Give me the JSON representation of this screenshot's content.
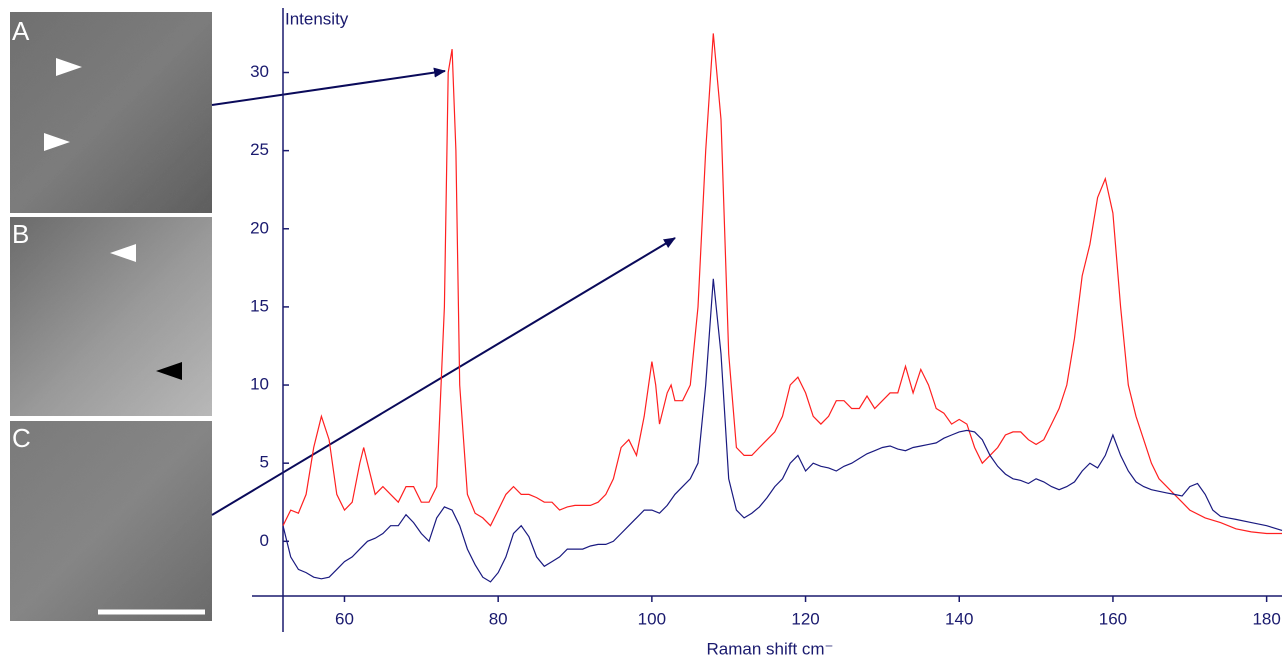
{
  "chart_data": {
    "type": "line",
    "panels": [
      "A",
      "B",
      "C"
    ],
    "ylabel": "Intensity",
    "xlabel": "Raman shift cm⁻",
    "xlim": [
      52,
      182
    ],
    "xticks": [
      60,
      80,
      100,
      120,
      140,
      160,
      180
    ],
    "ylim": [
      -3.5,
      34
    ],
    "yticks": [
      0,
      5,
      10,
      15,
      20,
      25,
      30
    ],
    "series": [
      {
        "color": "#ff2020",
        "x": [
          52,
          53,
          54,
          55,
          56,
          57,
          58,
          59,
          60,
          61,
          62,
          62.5,
          63,
          64,
          65,
          66,
          67,
          68,
          69,
          70,
          71,
          72,
          73,
          73.5,
          74,
          74.5,
          75,
          76,
          77,
          78,
          79,
          80,
          81,
          82,
          83,
          84,
          85,
          86,
          87,
          88,
          89,
          90,
          91,
          92,
          93,
          94,
          95,
          96,
          97,
          98,
          99,
          100,
          100.5,
          101,
          102,
          102.5,
          103,
          104,
          105,
          106,
          107,
          108,
          109,
          110,
          111,
          112,
          113,
          114,
          115,
          116,
          117,
          118,
          119,
          120,
          121,
          122,
          123,
          124,
          125,
          126,
          127,
          128,
          129,
          130,
          131,
          132,
          133,
          134,
          135,
          136,
          137,
          138,
          139,
          140,
          141,
          142,
          143,
          144,
          145,
          146,
          147,
          148,
          149,
          150,
          151,
          152,
          153,
          154,
          155,
          156,
          157,
          158,
          159,
          160,
          161,
          162,
          163,
          164,
          165,
          166,
          167,
          168,
          169,
          170,
          172,
          174,
          176,
          178,
          180,
          182
        ],
        "values": [
          1,
          2,
          1.8,
          3,
          6,
          8,
          6.5,
          3,
          2,
          2.5,
          5,
          6,
          5,
          3,
          3.5,
          3,
          2.5,
          3.5,
          3.5,
          2.5,
          2.5,
          3.5,
          15,
          30,
          31.5,
          25,
          10,
          3,
          1.8,
          1.5,
          1,
          2,
          3,
          3.5,
          3,
          3,
          2.8,
          2.5,
          2.5,
          2,
          2.2,
          2.3,
          2.3,
          2.3,
          2.5,
          3,
          4,
          6,
          6.5,
          5.5,
          8,
          11.5,
          10,
          7.5,
          9.5,
          10,
          9,
          9,
          10,
          15,
          25,
          32.5,
          27,
          12,
          6,
          5.5,
          5.5,
          6,
          6.5,
          7,
          8,
          10,
          10.5,
          9.5,
          8,
          7.5,
          8,
          9,
          9,
          8.5,
          8.5,
          9.3,
          8.5,
          9,
          9.5,
          9.5,
          11.2,
          9.5,
          11,
          10,
          8.5,
          8.2,
          7.5,
          7.8,
          7.5,
          6,
          5,
          5.5,
          6,
          6.8,
          7,
          7,
          6.5,
          6.2,
          6.5,
          7.5,
          8.5,
          10,
          13,
          17,
          19,
          22,
          23.2,
          21,
          15,
          10,
          8,
          6.5,
          5,
          4,
          3.5,
          3,
          2.5,
          2,
          1.5,
          1.2,
          0.8,
          0.6,
          0.5,
          0.5
        ]
      },
      {
        "color": "#1a1a80",
        "x": [
          52,
          53,
          54,
          55,
          56,
          57,
          58,
          59,
          60,
          61,
          62,
          63,
          64,
          65,
          66,
          67,
          68,
          69,
          70,
          71,
          72,
          73,
          74,
          75,
          76,
          77,
          78,
          79,
          80,
          81,
          82,
          83,
          84,
          85,
          86,
          87,
          88,
          89,
          90,
          91,
          92,
          93,
          94,
          95,
          96,
          97,
          98,
          99,
          100,
          101,
          102,
          103,
          104,
          105,
          106,
          107,
          108,
          109,
          110,
          111,
          112,
          113,
          114,
          115,
          116,
          117,
          118,
          119,
          120,
          121,
          122,
          123,
          124,
          125,
          126,
          127,
          128,
          129,
          130,
          131,
          132,
          133,
          134,
          135,
          136,
          137,
          138,
          139,
          140,
          141,
          142,
          143,
          144,
          145,
          146,
          147,
          148,
          149,
          150,
          151,
          152,
          153,
          154,
          155,
          156,
          157,
          158,
          159,
          160,
          161,
          162,
          163,
          164,
          165,
          166,
          167,
          168,
          169,
          170,
          171,
          172,
          173,
          174,
          175,
          176,
          178,
          180,
          182
        ],
        "values": [
          1,
          -1,
          -1.8,
          -2,
          -2.3,
          -2.4,
          -2.3,
          -1.8,
          -1.3,
          -1,
          -0.5,
          0,
          0.2,
          0.5,
          1,
          1,
          1.7,
          1.2,
          0.5,
          0,
          1.5,
          2.2,
          2,
          1,
          -0.5,
          -1.5,
          -2.3,
          -2.6,
          -2,
          -1,
          0.5,
          1,
          0.3,
          -1,
          -1.6,
          -1.3,
          -1,
          -0.5,
          -0.5,
          -0.5,
          -0.3,
          -0.2,
          -0.2,
          0,
          0.5,
          1,
          1.5,
          2,
          2,
          1.8,
          2.3,
          3,
          3.5,
          4,
          5,
          10,
          16.8,
          12,
          4,
          2,
          1.5,
          1.8,
          2.2,
          2.8,
          3.5,
          4,
          5,
          5.5,
          4.5,
          5,
          4.8,
          4.7,
          4.5,
          4.8,
          5,
          5.3,
          5.6,
          5.8,
          6,
          6.1,
          5.9,
          5.8,
          6,
          6.1,
          6.2,
          6.3,
          6.6,
          6.8,
          7,
          7.1,
          7,
          6.5,
          5.5,
          4.8,
          4.3,
          4,
          3.9,
          3.7,
          4,
          3.8,
          3.5,
          3.3,
          3.5,
          3.8,
          4.5,
          5,
          4.7,
          5.5,
          6.8,
          5.5,
          4.5,
          3.8,
          3.5,
          3.3,
          3.2,
          3.1,
          3,
          2.9,
          3.5,
          3.7,
          3,
          2,
          1.6,
          1.5,
          1.4,
          1.2,
          1,
          0.7
        ]
      }
    ]
  }
}
